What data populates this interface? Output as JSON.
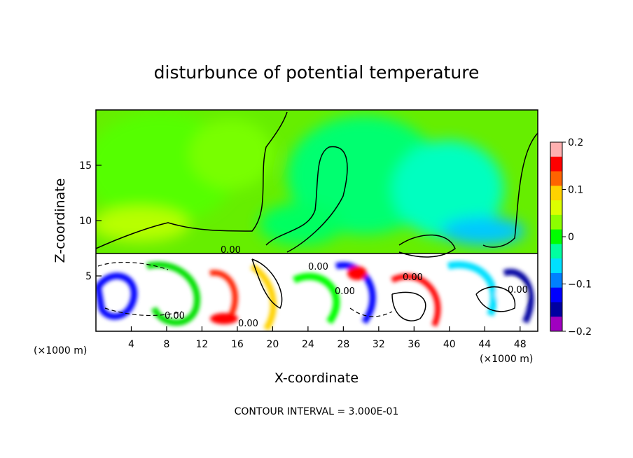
{
  "chart_data": {
    "type": "heatmap",
    "title": "disturbunce of potential temperature",
    "xlabel": "X-coordinate",
    "ylabel": "Z-coordinate",
    "x_unit": "(×1000 m)",
    "x_unit_right": "(×1000 m)",
    "xlim": [
      0,
      50
    ],
    "ylim": [
      0,
      20
    ],
    "xticks": [
      4,
      8,
      12,
      16,
      20,
      24,
      28,
      32,
      36,
      40,
      44,
      48
    ],
    "yticks": [
      5,
      10,
      15
    ],
    "colorbar": {
      "range": [
        -0.2,
        0.2
      ],
      "ticks": [
        "0.2",
        "0.1",
        "0",
        "−0.1",
        "−0.2"
      ],
      "ticks_values": [
        0.2,
        0.1,
        0,
        -0.1,
        -0.2
      ],
      "colors": [
        "#ffb0b0",
        "#ff0000",
        "#ff6400",
        "#ffd200",
        "#dcff00",
        "#8cff00",
        "#00ff00",
        "#00ffa0",
        "#00e0ff",
        "#0080ff",
        "#0000ff",
        "#0000a0",
        "#a000c0"
      ]
    },
    "contour_labels": [
      "0.00",
      "0.00",
      "0.00",
      "0.00",
      "0.00",
      "0.00",
      "0.00"
    ],
    "contour_interval": "CONTOUR INTERVAL = 3.000E-01"
  }
}
